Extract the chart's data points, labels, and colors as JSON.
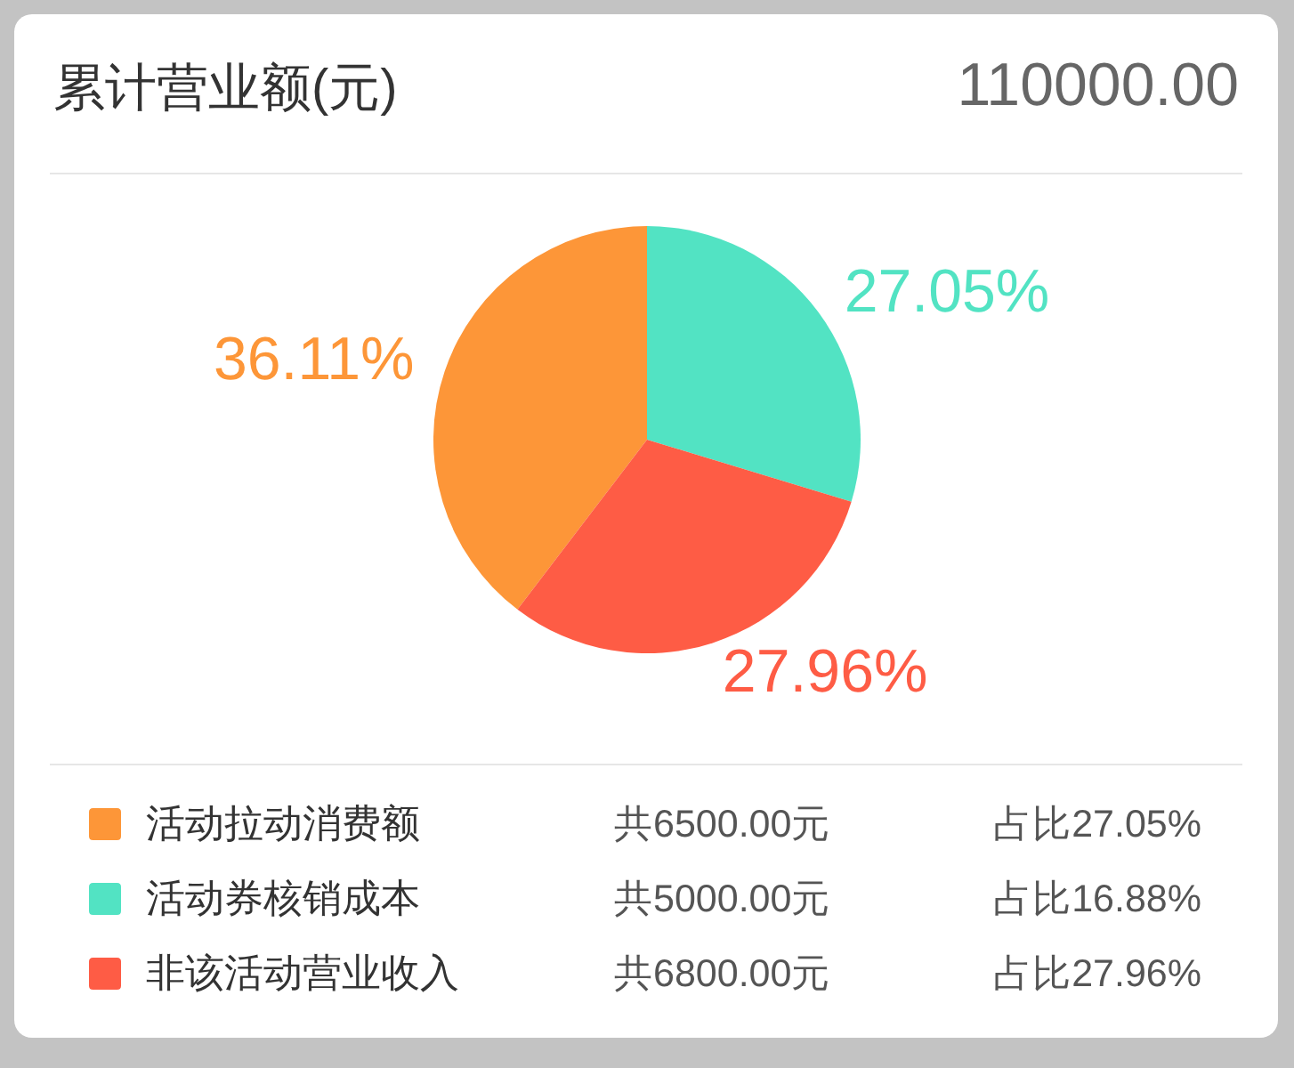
{
  "chart_data": {
    "type": "pie",
    "title": "累计营业额(元)",
    "subtitle": "110000.00",
    "categories": [
      "活动拉动消费额",
      "活动券核销成本",
      "非该活动营业收入"
    ],
    "values": [
      36.11,
      27.05,
      27.96
    ],
    "colors": [
      "#fd9638",
      "#52e3c3",
      "#fe5c45"
    ],
    "value_labels": [
      "36.11%",
      "27.05%",
      "27.96%"
    ],
    "legend": "bottom",
    "annotations": [
      "共6500.00元",
      "占比27.05%",
      "共5000.00元",
      "占比16.88%",
      "共6800.00元",
      "占比27.96%"
    ]
  }
}
